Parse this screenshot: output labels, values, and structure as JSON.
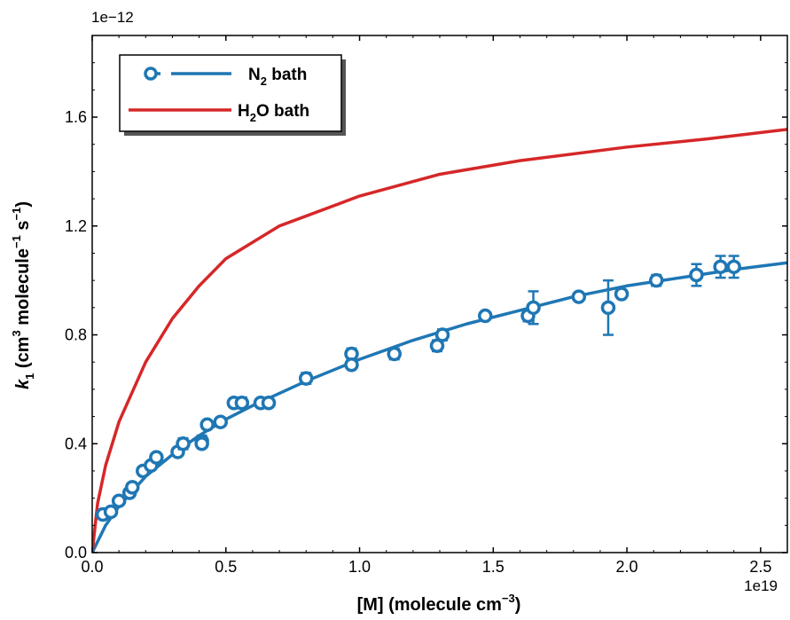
{
  "chart_data": {
    "type": "scatter",
    "x_offset_label": "1e19",
    "y_offset_label": "1e−12",
    "xlabel": {
      "main": "[M] (molecule cm",
      "sup": "−3",
      "close": ")"
    },
    "ylabel": {
      "k": "k",
      "sub": "1",
      "rest1": " (cm",
      "sup1": "3",
      "rest2": " molecule",
      "sup2": "−1",
      "rest3": " s",
      "sup3": "−1",
      "close": ")"
    },
    "xlim": [
      0,
      2.6
    ],
    "ylim": [
      0,
      1.9
    ],
    "x_ticks": [
      0.0,
      0.5,
      1.0,
      1.5,
      2.0,
      2.5
    ],
    "x_tick_labels": [
      "0.0",
      "0.5",
      "1.0",
      "1.5",
      "2.0",
      "2.5"
    ],
    "y_ticks": [
      0.0,
      0.4,
      0.8,
      1.2,
      1.6
    ],
    "y_tick_labels": [
      "0.0",
      "0.4",
      "0.8",
      "1.2",
      "1.6"
    ],
    "legend": {
      "position": "top-left",
      "entries": [
        {
          "label_base": "N",
          "label_sub": "2",
          "label_rest": " bath",
          "color": "#1f77b4",
          "marker": "circle",
          "line": true
        },
        {
          "label_base": "H",
          "label_sub": "2",
          "label_rest": "O bath",
          "color": "#d62728",
          "marker": "none",
          "line": true
        }
      ]
    },
    "series": [
      {
        "kind": "points",
        "color": "#1f77b4",
        "points": [
          {
            "x": 0.04,
            "y": 0.14,
            "err": 0.01
          },
          {
            "x": 0.07,
            "y": 0.15,
            "err": 0.01
          },
          {
            "x": 0.1,
            "y": 0.19,
            "err": 0.01
          },
          {
            "x": 0.14,
            "y": 0.22,
            "err": 0.01
          },
          {
            "x": 0.15,
            "y": 0.24,
            "err": 0.01
          },
          {
            "x": 0.19,
            "y": 0.3,
            "err": 0.01
          },
          {
            "x": 0.22,
            "y": 0.32,
            "err": 0.01
          },
          {
            "x": 0.24,
            "y": 0.35,
            "err": 0.01
          },
          {
            "x": 0.32,
            "y": 0.37,
            "err": 0.01
          },
          {
            "x": 0.34,
            "y": 0.4,
            "err": 0.02
          },
          {
            "x": 0.41,
            "y": 0.41,
            "err": 0.02
          },
          {
            "x": 0.41,
            "y": 0.4,
            "err": 0.01
          },
          {
            "x": 0.43,
            "y": 0.47,
            "err": 0.01
          },
          {
            "x": 0.48,
            "y": 0.48,
            "err": 0.01
          },
          {
            "x": 0.53,
            "y": 0.55,
            "err": 0.01
          },
          {
            "x": 0.56,
            "y": 0.55,
            "err": 0.02
          },
          {
            "x": 0.63,
            "y": 0.55,
            "err": 0.01
          },
          {
            "x": 0.66,
            "y": 0.55,
            "err": 0.01
          },
          {
            "x": 0.8,
            "y": 0.64,
            "err": 0.02
          },
          {
            "x": 0.97,
            "y": 0.73,
            "err": 0.02
          },
          {
            "x": 0.97,
            "y": 0.69,
            "err": 0.01
          },
          {
            "x": 1.13,
            "y": 0.73,
            "err": 0.02
          },
          {
            "x": 1.29,
            "y": 0.76,
            "err": 0.02
          },
          {
            "x": 1.31,
            "y": 0.8,
            "err": 0.02
          },
          {
            "x": 1.47,
            "y": 0.87,
            "err": 0.01
          },
          {
            "x": 1.63,
            "y": 0.87,
            "err": 0.02
          },
          {
            "x": 1.65,
            "y": 0.9,
            "err": 0.06
          },
          {
            "x": 1.82,
            "y": 0.94,
            "err": 0.01
          },
          {
            "x": 1.93,
            "y": 0.9,
            "err": 0.1
          },
          {
            "x": 1.98,
            "y": 0.95,
            "err": 0.01
          },
          {
            "x": 2.11,
            "y": 1.0,
            "err": 0.02
          },
          {
            "x": 2.26,
            "y": 1.02,
            "err": 0.04
          },
          {
            "x": 2.35,
            "y": 1.05,
            "err": 0.04
          },
          {
            "x": 2.4,
            "y": 1.05,
            "err": 0.04
          }
        ]
      },
      {
        "kind": "line",
        "color": "#1f77b4",
        "x": [
          0,
          0.05,
          0.1,
          0.2,
          0.3,
          0.4,
          0.5,
          0.6,
          0.8,
          1.0,
          1.2,
          1.4,
          1.6,
          1.8,
          2.0,
          2.2,
          2.4,
          2.6
        ],
        "y": [
          0.0,
          0.1,
          0.17,
          0.28,
          0.36,
          0.43,
          0.49,
          0.54,
          0.63,
          0.71,
          0.78,
          0.84,
          0.89,
          0.94,
          0.98,
          1.01,
          1.04,
          1.065
        ]
      },
      {
        "kind": "line",
        "color": "#d62728",
        "x": [
          0,
          0.02,
          0.05,
          0.1,
          0.2,
          0.3,
          0.4,
          0.5,
          0.7,
          1.0,
          1.3,
          1.6,
          2.0,
          2.3,
          2.6
        ],
        "y": [
          0.0,
          0.18,
          0.32,
          0.48,
          0.7,
          0.86,
          0.98,
          1.08,
          1.2,
          1.31,
          1.39,
          1.44,
          1.49,
          1.52,
          1.555
        ]
      }
    ]
  }
}
